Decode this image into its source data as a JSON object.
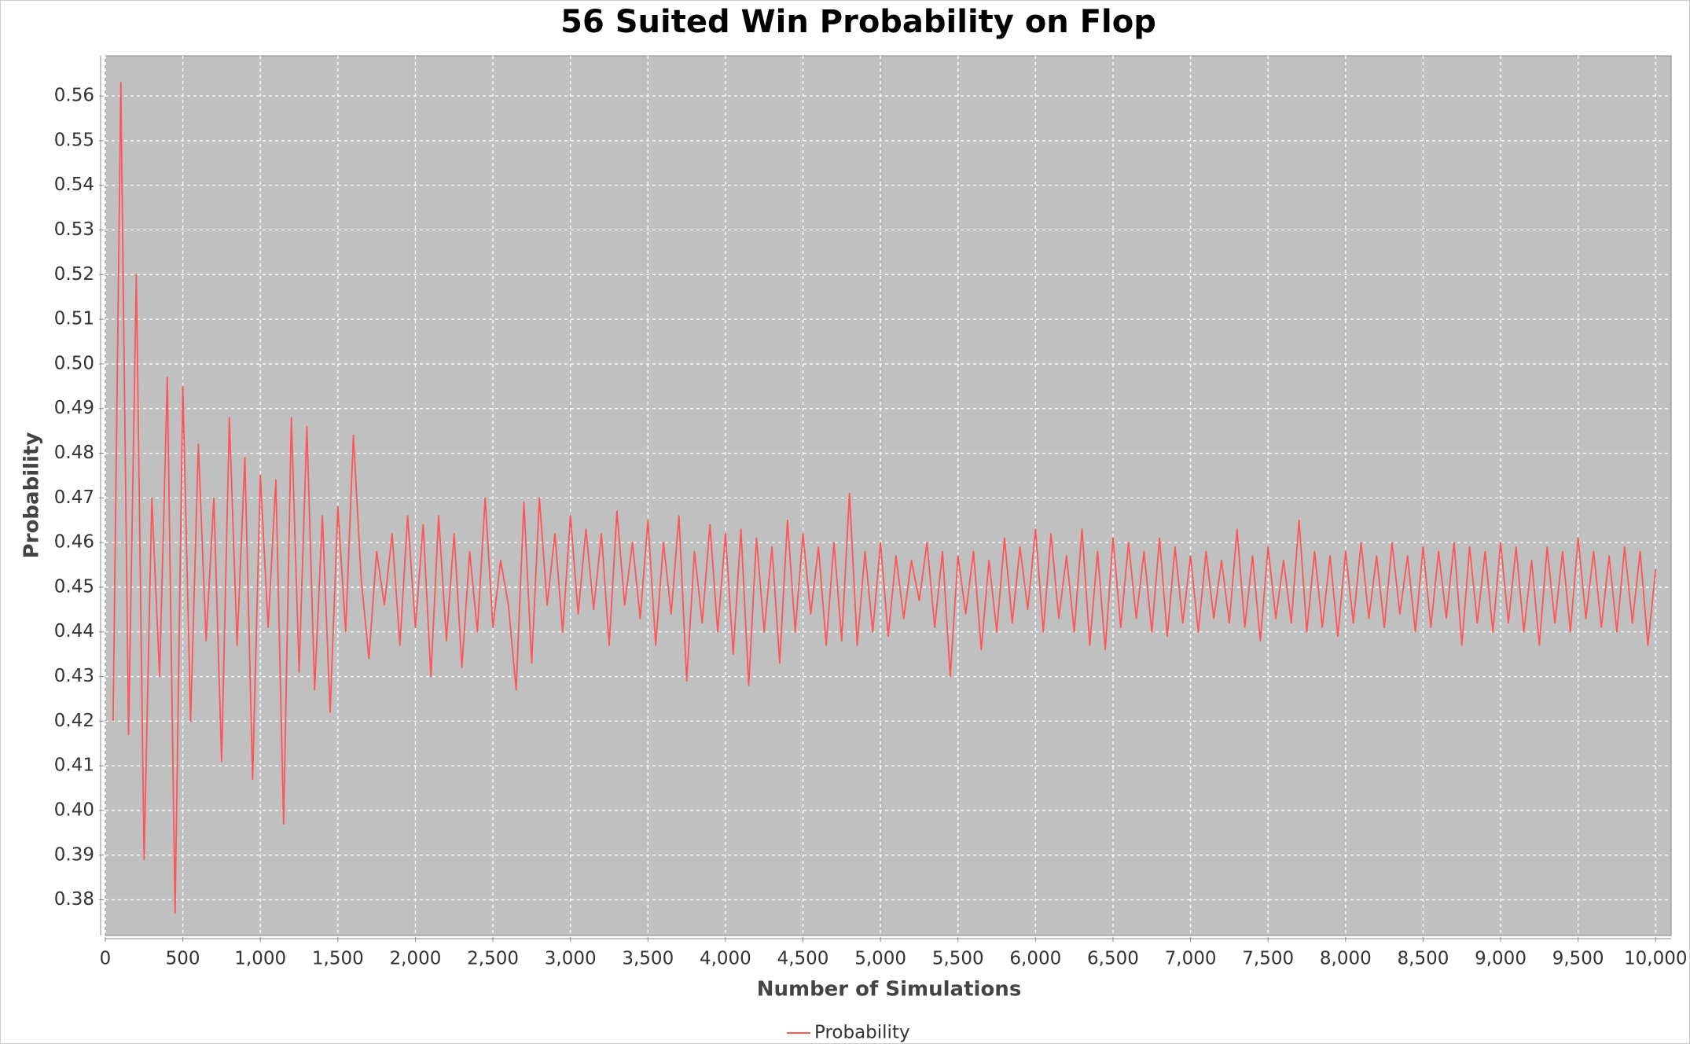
{
  "chart_data": {
    "type": "line",
    "title": "56 Suited Win Probability on Flop",
    "x_label": "Number of Simulations",
    "y_label": "Probability",
    "xlim": [
      0,
      10100
    ],
    "ylim": [
      0.372,
      0.569
    ],
    "xticks": [
      0,
      500,
      {
        "value": 1000,
        "label": "1,000"
      },
      {
        "value": 1500,
        "label": "1,500"
      },
      {
        "value": 2000,
        "label": "2,000"
      },
      {
        "value": 2500,
        "label": "2,500"
      },
      {
        "value": 3000,
        "label": "3,000"
      },
      {
        "value": 3500,
        "label": "3,500"
      },
      {
        "value": 4000,
        "label": "4,000"
      },
      {
        "value": 4500,
        "label": "4,500"
      },
      {
        "value": 5000,
        "label": "5,000"
      },
      {
        "value": 5500,
        "label": "5,500"
      },
      {
        "value": 6000,
        "label": "6,000"
      },
      {
        "value": 6500,
        "label": "6,500"
      },
      {
        "value": 7000,
        "label": "7,000"
      },
      {
        "value": 7500,
        "label": "7,500"
      },
      {
        "value": 8000,
        "label": "8,000"
      },
      {
        "value": 8500,
        "label": "8,500"
      },
      {
        "value": 9000,
        "label": "9,000"
      },
      {
        "value": 9500,
        "label": "9,500"
      },
      {
        "value": 10000,
        "label": "10,000"
      }
    ],
    "yticks": [
      0.38,
      0.39,
      {
        "value": 0.4,
        "label": "0.40"
      },
      0.41,
      0.42,
      0.43,
      0.44,
      0.45,
      0.46,
      0.47,
      0.48,
      0.49,
      {
        "value": 0.5,
        "label": "0.50"
      },
      0.51,
      0.52,
      0.53,
      0.54,
      0.55,
      0.56
    ],
    "grid": true,
    "legend": "bottom",
    "x": [
      50,
      100,
      150,
      200,
      250,
      300,
      350,
      400,
      450,
      500,
      550,
      600,
      650,
      700,
      750,
      800,
      850,
      900,
      950,
      1000,
      1050,
      1100,
      1150,
      1200,
      1250,
      1300,
      1350,
      1400,
      1450,
      1500,
      1550,
      1600,
      1650,
      1700,
      1750,
      1800,
      1850,
      1900,
      1950,
      2000,
      2050,
      2100,
      2150,
      2200,
      2250,
      2300,
      2350,
      2400,
      2450,
      2500,
      2550,
      2600,
      2650,
      2700,
      2750,
      2800,
      2850,
      2900,
      2950,
      3000,
      3050,
      3100,
      3150,
      3200,
      3250,
      3300,
      3350,
      3400,
      3450,
      3500,
      3550,
      3600,
      3650,
      3700,
      3750,
      3800,
      3850,
      3900,
      3950,
      4000,
      4050,
      4100,
      4150,
      4200,
      4250,
      4300,
      4350,
      4400,
      4450,
      4500,
      4550,
      4600,
      4650,
      4700,
      4750,
      4800,
      4850,
      4900,
      4950,
      5000,
      5050,
      5100,
      5150,
      5200,
      5250,
      5300,
      5350,
      5400,
      5450,
      5500,
      5550,
      5600,
      5650,
      5700,
      5750,
      5800,
      5850,
      5900,
      5950,
      6000,
      6050,
      6100,
      6150,
      6200,
      6250,
      6300,
      6350,
      6400,
      6450,
      6500,
      6550,
      6600,
      6650,
      6700,
      6750,
      6800,
      6850,
      6900,
      6950,
      7000,
      7050,
      7100,
      7150,
      7200,
      7250,
      7300,
      7350,
      7400,
      7450,
      7500,
      7550,
      7600,
      7650,
      7700,
      7750,
      7800,
      7850,
      7900,
      7950,
      8000,
      8050,
      8100,
      8150,
      8200,
      8250,
      8300,
      8350,
      8400,
      8450,
      8500,
      8550,
      8600,
      8650,
      8700,
      8750,
      8800,
      8850,
      8900,
      8950,
      9000,
      9050,
      9100,
      9150,
      9200,
      9250,
      9300,
      9350,
      9400,
      9450,
      9500,
      9550,
      9600,
      9650,
      9700,
      9750,
      9800,
      9850,
      9900,
      9950,
      10000
    ],
    "series": [
      {
        "name": "Probability",
        "color": "#ff5555",
        "values": [
          0.42,
          0.563,
          0.417,
          0.52,
          0.389,
          0.47,
          0.43,
          0.497,
          0.377,
          0.495,
          0.42,
          0.482,
          0.438,
          0.47,
          0.411,
          0.488,
          0.437,
          0.479,
          0.407,
          0.475,
          0.441,
          0.474,
          0.397,
          0.488,
          0.431,
          0.486,
          0.427,
          0.466,
          0.422,
          0.468,
          0.44,
          0.484,
          0.452,
          0.434,
          0.458,
          0.446,
          0.462,
          0.437,
          0.466,
          0.441,
          0.464,
          0.43,
          0.466,
          0.438,
          0.462,
          0.432,
          0.458,
          0.44,
          0.47,
          0.441,
          0.456,
          0.446,
          0.427,
          0.469,
          0.433,
          0.47,
          0.446,
          0.462,
          0.44,
          0.466,
          0.444,
          0.463,
          0.445,
          0.462,
          0.437,
          0.467,
          0.446,
          0.46,
          0.443,
          0.465,
          0.437,
          0.46,
          0.444,
          0.466,
          0.429,
          0.458,
          0.442,
          0.464,
          0.44,
          0.462,
          0.435,
          0.463,
          0.428,
          0.461,
          0.44,
          0.459,
          0.433,
          0.465,
          0.44,
          0.462,
          0.444,
          0.459,
          0.437,
          0.46,
          0.438,
          0.471,
          0.437,
          0.458,
          0.44,
          0.46,
          0.439,
          0.457,
          0.443,
          0.456,
          0.447,
          0.46,
          0.441,
          0.458,
          0.43,
          0.457,
          0.444,
          0.458,
          0.436,
          0.456,
          0.44,
          0.461,
          0.442,
          0.459,
          0.445,
          0.463,
          0.44,
          0.462,
          0.443,
          0.457,
          0.44,
          0.463,
          0.437,
          0.458,
          0.436,
          0.461,
          0.441,
          0.46,
          0.443,
          0.458,
          0.44,
          0.461,
          0.439,
          0.459,
          0.442,
          0.457,
          0.44,
          0.458,
          0.443,
          0.456,
          0.442,
          0.463,
          0.441,
          0.457,
          0.438,
          0.459,
          0.443,
          0.456,
          0.442,
          0.465,
          0.44,
          0.458,
          0.441,
          0.457,
          0.439,
          0.458,
          0.442,
          0.46,
          0.443,
          0.457,
          0.441,
          0.46,
          0.444,
          0.457,
          0.44,
          0.459,
          0.441,
          0.458,
          0.443,
          0.46,
          0.437,
          0.459,
          0.442,
          0.458,
          0.44,
          0.46,
          0.442,
          0.459,
          0.44,
          0.456,
          0.437,
          0.459,
          0.442,
          0.458,
          0.44,
          0.461,
          0.443,
          0.458,
          0.441,
          0.457,
          0.44,
          0.459,
          0.442,
          0.458,
          0.437,
          0.454
        ]
      }
    ]
  }
}
